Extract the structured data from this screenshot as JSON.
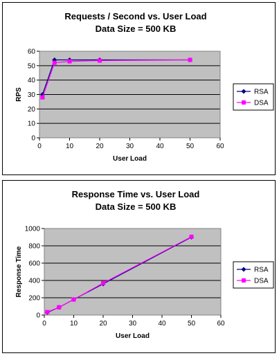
{
  "chart_data": [
    {
      "type": "line",
      "title": "Requests / Second  vs.  User Load",
      "subtitle": "Data Size = 500 KB",
      "xlabel": "User Load",
      "ylabel": "RPS",
      "xlim": [
        0,
        60
      ],
      "ylim": [
        0,
        60
      ],
      "xticks": [
        0,
        10,
        20,
        30,
        40,
        50,
        60
      ],
      "yticks": [
        0,
        10,
        20,
        30,
        40,
        50,
        60
      ],
      "grid": "horizontal",
      "plot_background": "#c0c0c0",
      "legend_position": "right",
      "series": [
        {
          "name": "RSA",
          "color": "#000080",
          "marker": "diamond",
          "x": [
            1,
            5,
            10,
            20,
            50
          ],
          "y": [
            30,
            54,
            54,
            54,
            54
          ]
        },
        {
          "name": "DSA",
          "color": "#ff00ff",
          "marker": "square",
          "x": [
            1,
            5,
            10,
            20,
            50
          ],
          "y": [
            28,
            52,
            53,
            53.5,
            54
          ]
        }
      ]
    },
    {
      "type": "line",
      "title": "Response Time  vs.  User Load",
      "subtitle": "Data Size = 500 KB",
      "xlabel": "User Load",
      "ylabel": "Response Time",
      "xlim": [
        0,
        60
      ],
      "ylim": [
        0,
        1000
      ],
      "xticks": [
        0,
        10,
        20,
        30,
        40,
        50,
        60
      ],
      "yticks": [
        0,
        200,
        400,
        600,
        800,
        1000
      ],
      "grid": "horizontal",
      "plot_background": "#c0c0c0",
      "legend_position": "right",
      "series": [
        {
          "name": "RSA",
          "color": "#000080",
          "marker": "diamond",
          "x": [
            1,
            5,
            10,
            20,
            50
          ],
          "y": [
            30,
            90,
            180,
            360,
            900
          ]
        },
        {
          "name": "DSA",
          "color": "#ff00ff",
          "marker": "square",
          "x": [
            1,
            5,
            10,
            20,
            50
          ],
          "y": [
            35,
            90,
            180,
            370,
            905
          ]
        }
      ]
    }
  ]
}
